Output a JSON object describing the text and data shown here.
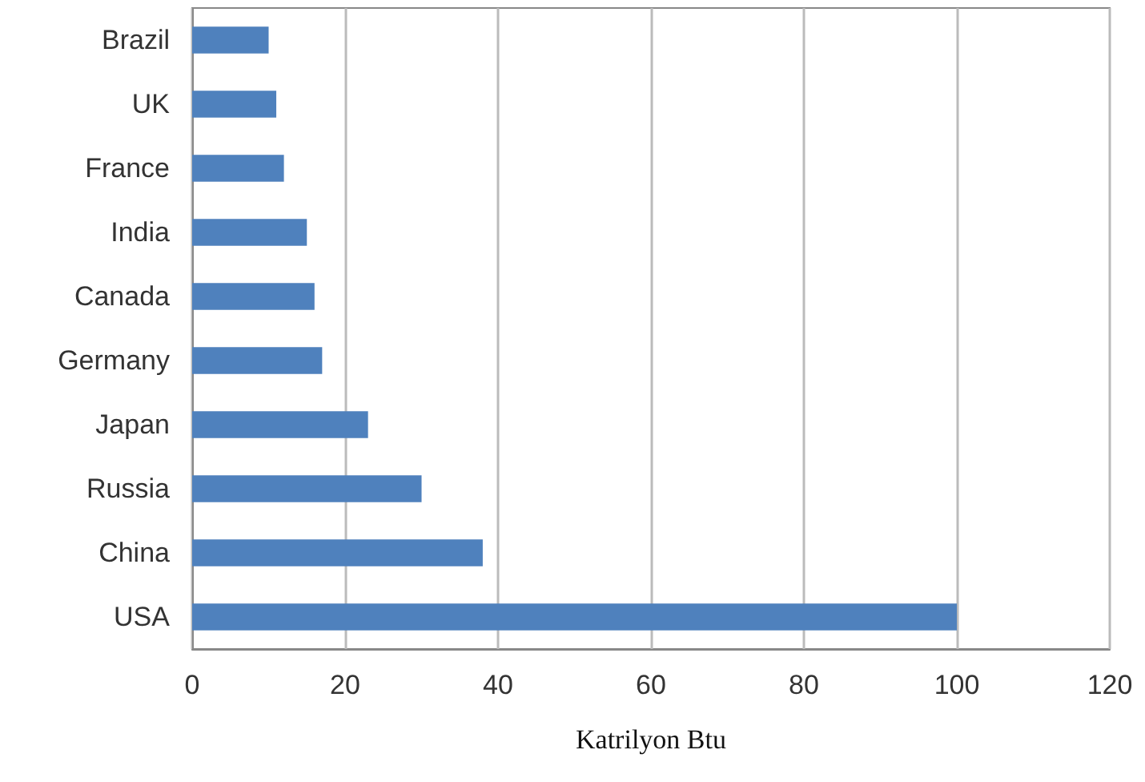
{
  "chart_data": {
    "type": "bar",
    "orientation": "horizontal",
    "xlabel": "Katrilyon Btu",
    "categories": [
      "Brazil",
      "UK",
      "France",
      "India",
      "Canada",
      "Germany",
      "Japan",
      "Russia",
      "China",
      "USA"
    ],
    "values": [
      10,
      11,
      12,
      15,
      16,
      17,
      23,
      30,
      38,
      100
    ],
    "color": "#4f81bd",
    "xlim": [
      0,
      120
    ],
    "xticks": [
      0,
      20,
      40,
      60,
      80,
      100,
      120
    ],
    "grid": "x"
  }
}
